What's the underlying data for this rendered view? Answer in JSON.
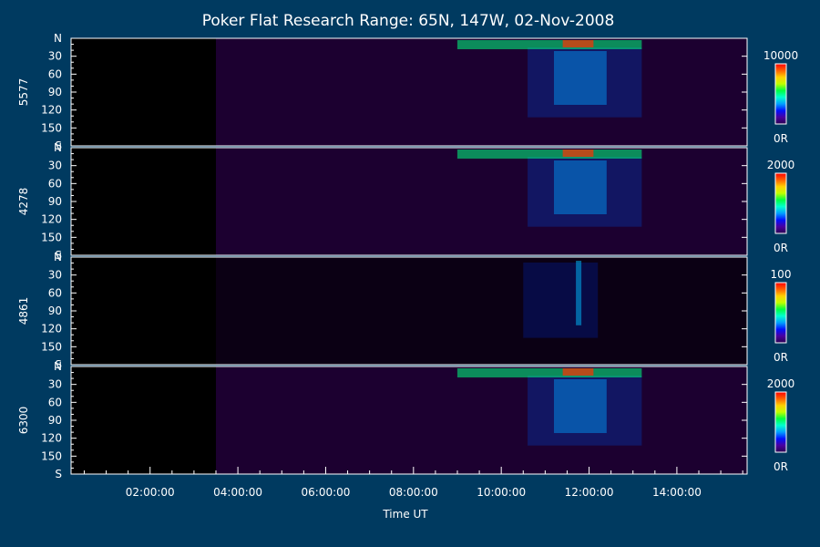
{
  "chart_data": {
    "type": "heatmap",
    "title": "Poker Flat Research Range: 65N, 147W, 02-Nov-2008",
    "xlabel": "Time UT",
    "x_ticks": [
      "02:00:00",
      "04:00:00",
      "06:00:00",
      "08:00:00",
      "10:00:00",
      "12:00:00",
      "14:00:00"
    ],
    "x_tick_hours": [
      2,
      4,
      6,
      8,
      10,
      12,
      14
    ],
    "x_range_hours": [
      0.2,
      15.6
    ],
    "y_ticks": [
      "N",
      "30",
      "60",
      "90",
      "120",
      "150",
      "S"
    ],
    "y_tick_values": [
      0,
      30,
      60,
      90,
      120,
      150,
      180
    ],
    "y_range": [
      0,
      180
    ],
    "data_start_hour": 3.5,
    "data_end_hour": 15.6,
    "panels": [
      {
        "wavelength": "5577",
        "scale_max": "10000",
        "scale_min": "0R"
      },
      {
        "wavelength": "4278",
        "scale_max": "2000",
        "scale_min": "0R"
      },
      {
        "wavelength": "4861",
        "scale_max": "100",
        "scale_min": "0R"
      },
      {
        "wavelength": "6300",
        "scale_max": "2000",
        "scale_min": "0R"
      }
    ],
    "colorscale": [
      "#2a0050",
      "#4a00a0",
      "#0010ff",
      "#00a0ff",
      "#00ffd0",
      "#00ff40",
      "#c0ff00",
      "#ffd000",
      "#ff6000",
      "#ff0000"
    ]
  }
}
